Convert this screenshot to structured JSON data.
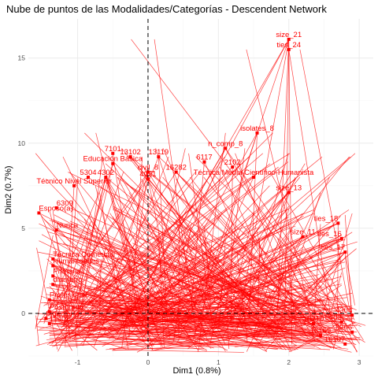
{
  "chart_data": {
    "type": "scatter",
    "title": "Nube de puntos de las Modalidades/Categorías - Descendent Network",
    "xlabel": "Dim1 (0.8%)",
    "ylabel": "Dim2 (0.7%)",
    "xlim": [
      -1.7,
      3.2
    ],
    "ylim": [
      -2.5,
      17.3
    ],
    "xticks": [
      -1,
      0,
      1,
      2,
      3
    ],
    "yticks": [
      0,
      5,
      10,
      15
    ],
    "grid": true,
    "reference_lines": {
      "x": 0,
      "y": 0,
      "style": "dashed"
    },
    "color": "#ff0000",
    "labeled_points": [
      {
        "label": "size_21",
        "x": 2.0,
        "y": 16.1
      },
      {
        "label": "ties_24",
        "x": 2.0,
        "y": 15.5
      },
      {
        "label": "isolates_8",
        "x": 1.55,
        "y": 10.6
      },
      {
        "label": "n_comp_8",
        "x": 1.1,
        "y": 9.7
      },
      {
        "label": "7101",
        "x": -0.5,
        "y": 9.4
      },
      {
        "label": "13102",
        "x": -0.25,
        "y": 9.2
      },
      {
        "label": "13119",
        "x": 0.15,
        "y": 9.2
      },
      {
        "label": "Educación Básica",
        "x": -0.5,
        "y": 8.8
      },
      {
        "label": "6117",
        "x": 0.8,
        "y": 8.9
      },
      {
        "label": "2102",
        "x": 1.2,
        "y": 8.6
      },
      {
        "label": "civil_8",
        "x": 0.0,
        "y": 8.3
      },
      {
        "label": "16282",
        "x": 0.4,
        "y": 8.3
      },
      {
        "label": "Técnica Media Científico-Humanista",
        "x": 1.5,
        "y": 8.0
      },
      {
        "label": "5304",
        "x": -0.85,
        "y": 8.0
      },
      {
        "label": "4302",
        "x": -0.6,
        "y": 8.0
      },
      {
        "label": "4021",
        "x": 0.0,
        "y": 7.9
      },
      {
        "label": "Técnico Nivel Superior",
        "x": -1.05,
        "y": 7.5
      },
      {
        "label": "size_13",
        "x": 2.0,
        "y": 7.1
      },
      {
        "label": "Esposo(a)",
        "x": -1.55,
        "y": 5.9
      },
      {
        "label": "6309",
        "x": -1.3,
        "y": 6.2
      },
      {
        "label": "Nunca",
        "x": -1.3,
        "y": 4.9
      },
      {
        "label": "ties_18",
        "x": 2.7,
        "y": 5.3
      },
      {
        "label": "ties_16",
        "x": 2.75,
        "y": 4.4
      },
      {
        "label": "ties_17",
        "x": 2.8,
        "y": 3.6
      },
      {
        "label": "size_11",
        "x": 2.2,
        "y": 4.5
      },
      {
        "label": "Técnica Comercial",
        "x": -1.35,
        "y": 3.2
      },
      {
        "label": "Humanidades",
        "x": -1.35,
        "y": 2.8
      },
      {
        "label": "diametro",
        "x": -1.35,
        "y": 1.7
      },
      {
        "label": "Primaria",
        "x": -1.35,
        "y": 2.2
      },
      {
        "label": "Profesional",
        "x": -1.4,
        "y": 0.8
      },
      {
        "label": "Postgrado",
        "x": -1.4,
        "y": 0.1
      },
      {
        "label": "Ingeniería",
        "x": -1.45,
        "y": -0.3
      },
      {
        "label": "11402",
        "x": -1.4,
        "y": -0.6
      },
      {
        "label": "10210",
        "x": 2.35,
        "y": -0.6
      },
      {
        "label": "5403",
        "x": 2.75,
        "y": -0.5
      },
      {
        "label": "16109",
        "x": 2.45,
        "y": -1.3
      },
      {
        "label": "8206",
        "x": 2.9,
        "y": -1.1
      },
      {
        "label": "16107",
        "x": 2.8,
        "y": -1.8
      },
      {
        "label": "4304",
        "x": 2.9,
        "y": -0.1
      }
    ]
  }
}
